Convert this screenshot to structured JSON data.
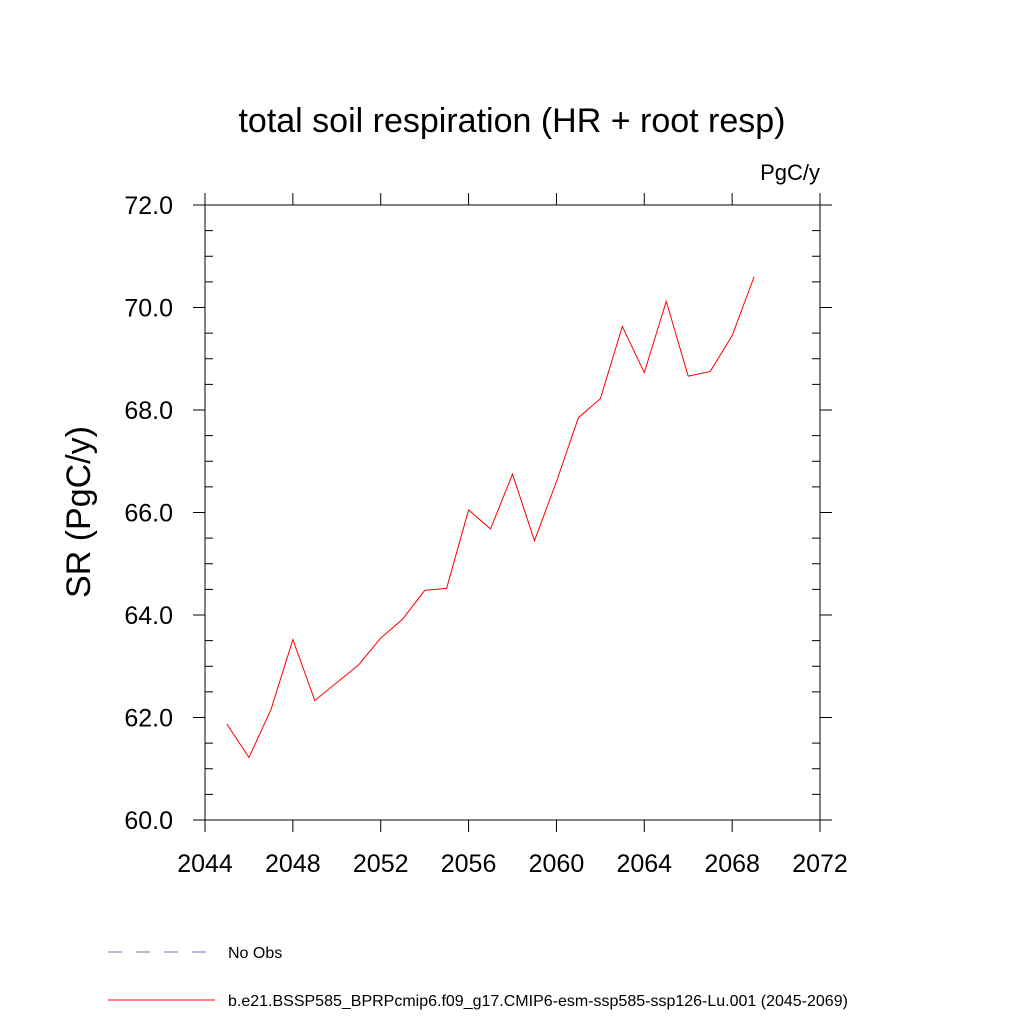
{
  "chart_data": {
    "type": "line",
    "title": "total soil respiration (HR + root resp)",
    "units_label": "PgC/y",
    "ylabel": "SR  (PgC/y)",
    "xlabel": "",
    "xlim": [
      2044,
      2072
    ],
    "ylim": [
      60.0,
      72.0
    ],
    "x_ticks": [
      2044,
      2048,
      2052,
      2056,
      2060,
      2064,
      2068,
      2072
    ],
    "x_tick_labels": [
      "2044",
      "2048",
      "2052",
      "2056",
      "2060",
      "2064",
      "2068",
      "2072"
    ],
    "y_ticks": [
      60,
      62,
      64,
      66,
      68,
      70,
      72
    ],
    "y_tick_labels": [
      "60.0",
      "62.0",
      "64.0",
      "66.0",
      "68.0",
      "70.0",
      "72.0"
    ],
    "grid": false,
    "legend_position": "bottom",
    "series": [
      {
        "name": "b.e21.BSSP585_BPRPcmip6.f09_g17.CMIP6-esm-ssp585-ssp126-Lu.001 (2045-2069)",
        "color": "#ff0000",
        "style": "solid",
        "x": [
          2045,
          2046,
          2047,
          2048,
          2049,
          2050,
          2051,
          2052,
          2053,
          2054,
          2055,
          2056,
          2057,
          2058,
          2059,
          2060,
          2061,
          2062,
          2063,
          2064,
          2065,
          2066,
          2067,
          2068,
          2069
        ],
        "y": [
          61.87,
          61.22,
          62.15,
          63.52,
          62.33,
          62.68,
          63.03,
          63.55,
          63.92,
          64.48,
          64.52,
          66.05,
          65.68,
          66.75,
          65.45,
          66.6,
          67.85,
          68.22,
          69.63,
          68.73,
          70.12,
          68.66,
          68.75,
          69.45,
          70.6
        ]
      },
      {
        "name": "No Obs",
        "color": "#7d6fb5",
        "style": "dashed",
        "x": [],
        "y": []
      }
    ]
  }
}
